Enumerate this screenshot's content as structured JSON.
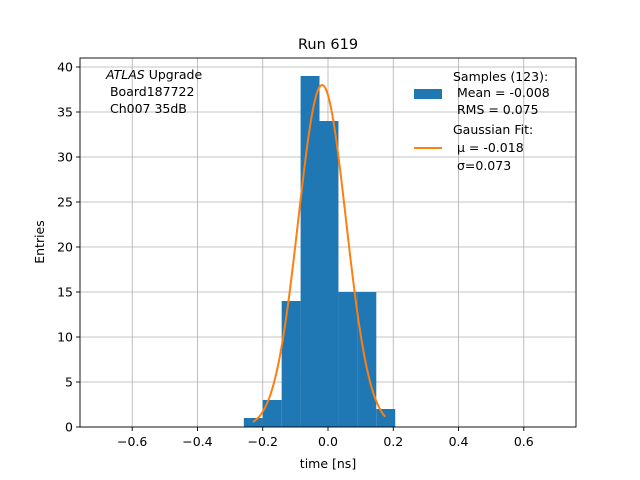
{
  "chart_data": {
    "type": "bar",
    "title": "Run 619",
    "xlabel": "time [ns]",
    "ylabel": "Entries",
    "xlim": [
      -0.76,
      0.76
    ],
    "ylim": [
      0,
      41
    ],
    "xticks": [
      -0.6,
      -0.4,
      -0.2,
      0.0,
      0.2,
      0.4,
      0.6
    ],
    "xtick_labels": [
      "−0.6",
      "−0.4",
      "−0.2",
      "0.0",
      "0.2",
      "0.4",
      "0.6"
    ],
    "yticks": [
      0,
      5,
      10,
      15,
      20,
      25,
      30,
      35,
      40
    ],
    "ytick_labels": [
      "0",
      "5",
      "10",
      "15",
      "20",
      "25",
      "30",
      "35",
      "40"
    ],
    "grid": true,
    "legend_position": "top-right",
    "annotation": {
      "italic": "ATLAS",
      "line1_rest": " Upgrade",
      "line2": " Board187722",
      "line3": " Ch007 35dB"
    },
    "series": [
      {
        "kind": "histogram",
        "color": "#1f77b4",
        "legend_lines": [
          "Samples (123):",
          " Mean = -0.008",
          " RMS = 0.075"
        ],
        "bin_edges": [
          -0.258,
          -0.2,
          -0.142,
          -0.084,
          -0.026,
          0.032,
          0.09,
          0.148,
          0.206
        ],
        "values": [
          1,
          3,
          14,
          39,
          34,
          15,
          15,
          2
        ]
      },
      {
        "kind": "gaussian_fit",
        "color": "#ff7f0e",
        "legend_lines": [
          "Gaussian Fit:",
          " μ = -0.018",
          " σ=0.073"
        ],
        "amplitude": 38,
        "mu": -0.018,
        "sigma": 0.073,
        "x_range": [
          -0.23,
          0.175
        ]
      }
    ]
  }
}
